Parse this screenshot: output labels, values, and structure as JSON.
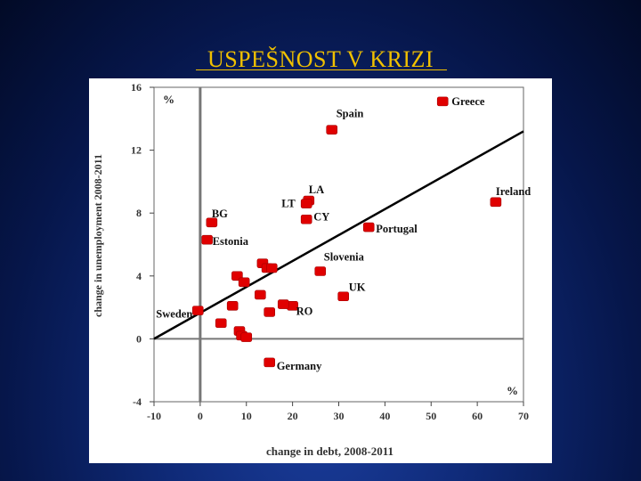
{
  "slide": {
    "title": "USPEŠNOST V KRIZI"
  },
  "chart_data": {
    "type": "scatter",
    "title": "",
    "xlabel": "change in debt, 2008-2011",
    "ylabel": "change in unemployment 2008-2011",
    "x_unit": "%",
    "y_unit": "%",
    "xlim": [
      -10,
      70
    ],
    "ylim": [
      -4,
      16
    ],
    "xticks": [
      -10,
      0,
      10,
      20,
      30,
      40,
      50,
      60,
      70
    ],
    "yticks": [
      -4,
      0,
      4,
      8,
      12,
      16
    ],
    "grid": false,
    "marker_color": "#e00000",
    "trend_line": {
      "x": [
        -10,
        70
      ],
      "y": [
        0,
        13.2
      ]
    },
    "points": [
      {
        "label": "Greece",
        "x": 52.5,
        "y": 15.1
      },
      {
        "label": "Spain",
        "x": 28.5,
        "y": 13.3
      },
      {
        "label": "LA",
        "x": 23.5,
        "y": 8.8
      },
      {
        "label": "LT",
        "x": 23,
        "y": 8.6
      },
      {
        "label": "CY",
        "x": 23,
        "y": 7.6
      },
      {
        "label": "Ireland",
        "x": 64,
        "y": 8.7
      },
      {
        "label": "Portugal",
        "x": 36.5,
        "y": 7.1
      },
      {
        "label": "BG",
        "x": 2.5,
        "y": 7.4
      },
      {
        "label": "Estonia",
        "x": 1.5,
        "y": 6.3
      },
      {
        "label": "Slovenia",
        "x": 26,
        "y": 4.3
      },
      {
        "label": "UK",
        "x": 31,
        "y": 2.7
      },
      {
        "label": "RO",
        "x": 20,
        "y": 2.1
      },
      {
        "label": "Sweden",
        "x": -0.5,
        "y": 1.8
      },
      {
        "label": "Germany",
        "x": 15,
        "y": -1.5
      },
      {
        "label": "",
        "x": 13.5,
        "y": 4.8
      },
      {
        "label": "",
        "x": 14.5,
        "y": 4.5
      },
      {
        "label": "",
        "x": 15.5,
        "y": 4.5
      },
      {
        "label": "",
        "x": 8,
        "y": 4.0
      },
      {
        "label": "",
        "x": 9.5,
        "y": 3.6
      },
      {
        "label": "",
        "x": 13,
        "y": 2.8
      },
      {
        "label": "",
        "x": 18,
        "y": 2.2
      },
      {
        "label": "",
        "x": 7,
        "y": 2.1
      },
      {
        "label": "",
        "x": 15,
        "y": 1.7
      },
      {
        "label": "",
        "x": 4.5,
        "y": 1.0
      },
      {
        "label": "",
        "x": 8.5,
        "y": 0.5
      },
      {
        "label": "",
        "x": 9,
        "y": 0.2
      },
      {
        "label": "",
        "x": 10,
        "y": 0.1
      }
    ]
  }
}
